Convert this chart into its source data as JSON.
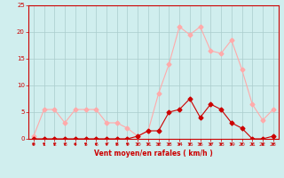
{
  "x": [
    0,
    1,
    2,
    3,
    4,
    5,
    6,
    7,
    8,
    9,
    10,
    11,
    12,
    13,
    14,
    15,
    16,
    17,
    18,
    19,
    20,
    21,
    22,
    23
  ],
  "y_rafales": [
    0.5,
    5.5,
    5.5,
    3,
    5.5,
    5.5,
    5.5,
    3,
    3,
    2,
    0.5,
    1.5,
    8.5,
    14,
    21,
    19.5,
    21,
    16.5,
    16,
    18.5,
    13,
    6.5,
    3.5,
    5.5
  ],
  "y_moyen": [
    0,
    0,
    0,
    0,
    0,
    0,
    0,
    0,
    0,
    0,
    0.5,
    1.5,
    1.5,
    5,
    5.5,
    7.5,
    4,
    6.5,
    5.5,
    3,
    2,
    0,
    0,
    0.5
  ],
  "color_rafales": "#ffaaaa",
  "color_moyen": "#cc0000",
  "marker": "D",
  "markersize": 2.5,
  "linewidth": 0.8,
  "xlabel": "Vent moyen/en rafales ( km/h )",
  "ylim": [
    0,
    25
  ],
  "xlim": [
    -0.5,
    23.5
  ],
  "yticks": [
    0,
    5,
    10,
    15,
    20,
    25
  ],
  "xticks": [
    0,
    1,
    2,
    3,
    4,
    5,
    6,
    7,
    8,
    9,
    10,
    11,
    12,
    13,
    14,
    15,
    16,
    17,
    18,
    19,
    20,
    21,
    22,
    23
  ],
  "bg_color": "#d0eeee",
  "grid_color": "#aacccc",
  "tick_color": "#cc0000",
  "label_color": "#cc0000",
  "spine_color": "#cc0000"
}
